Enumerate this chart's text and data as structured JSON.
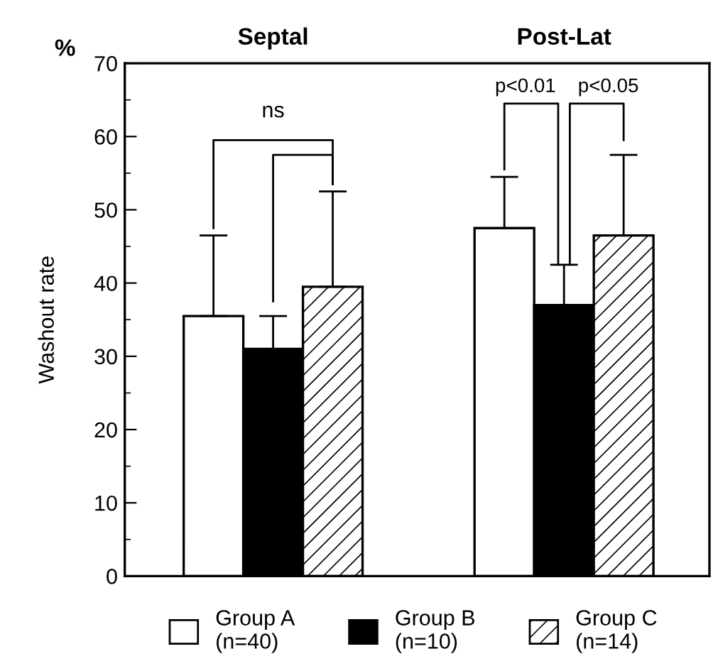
{
  "chart_data": {
    "type": "bar",
    "ylabel": "Washout rate",
    "categories": [
      "Septal",
      "Post-Lat"
    ],
    "series": [
      {
        "name": "Group A\n(n=40)",
        "color": "#ffffff",
        "values": [
          35.5,
          47.5
        ],
        "errors": [
          [
            35.5,
            46.5
          ],
          [
            47.5,
            54.5
          ]
        ]
      },
      {
        "name": "Group B\n(n=10)",
        "color": "#000000",
        "values": [
          31,
          37
        ],
        "errors": [
          [
            31,
            35.5
          ],
          [
            37,
            42.5
          ]
        ]
      },
      {
        "name": "Group C\n(n=14)",
        "color": "#000000",
        "values": [
          39.5,
          46.5
        ],
        "errors": [
          [
            39.5,
            52.5
          ],
          [
            46.5,
            57.5
          ]
        ]
      }
    ],
    "ylim": [
      0,
      70
    ],
    "yticks": [
      0,
      10,
      20,
      30,
      40,
      50,
      60,
      70
    ],
    "annotations": [
      "%",
      "ns",
      "p<0.01",
      "p<0.05"
    ],
    "grid": false,
    "legend": "bottom"
  }
}
